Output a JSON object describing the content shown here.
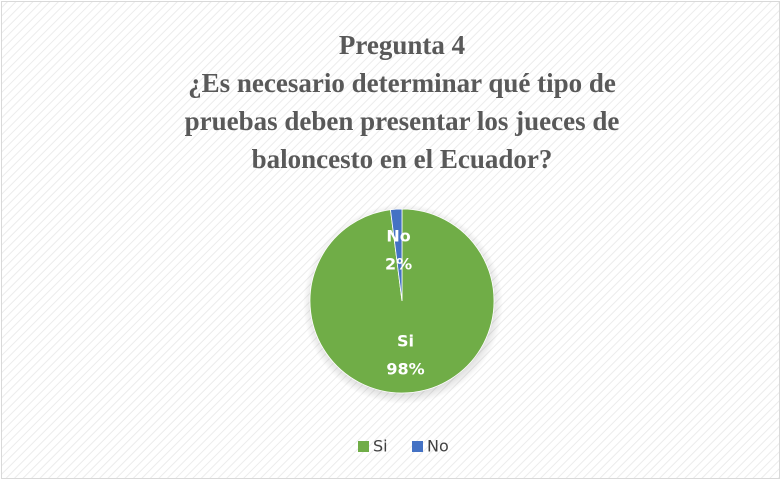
{
  "chart_data": {
    "type": "pie",
    "title": [
      "Pregunta 4",
      "¿Es necesario determinar qué tipo de",
      "pruebas deben presentar  los jueces de",
      "baloncesto en el Ecuador?"
    ],
    "categories": [
      "Si",
      "No"
    ],
    "values": [
      98,
      2
    ],
    "value_labels": [
      "98%",
      "2%"
    ],
    "colors": [
      "#70ad47",
      "#4472c4"
    ],
    "legend": "bottom"
  }
}
